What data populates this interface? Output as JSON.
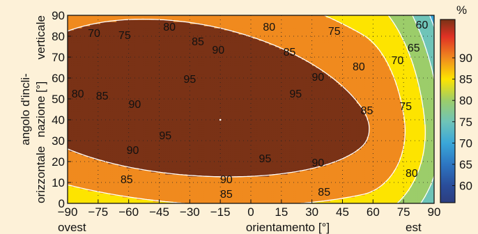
{
  "chart_data": {
    "type": "heatmap",
    "title": "",
    "xlabel": "orientamento [°]",
    "x_end_labels": {
      "left": "ovest",
      "right": "est"
    },
    "ylabel_lines": [
      "angolo d'incli-",
      "nazione [°]"
    ],
    "y_end_labels": {
      "bottom": "orizzontale",
      "top": "verticale"
    },
    "x_ticks": [
      -90,
      -75,
      -60,
      -45,
      -30,
      -15,
      0,
      15,
      30,
      45,
      60,
      75,
      90
    ],
    "y_ticks": [
      0,
      10,
      20,
      30,
      40,
      50,
      60,
      70,
      80,
      90
    ],
    "xlim": [
      -90,
      90
    ],
    "ylim": [
      0,
      90
    ],
    "grid": true,
    "colorbar": {
      "unit": "%",
      "ticks": [
        60,
        65,
        70,
        75,
        80,
        85,
        90
      ],
      "range": [
        56,
        99
      ],
      "stops": [
        {
          "v": 56,
          "color": "#2c3e7f"
        },
        {
          "v": 60,
          "color": "#2a4d9a"
        },
        {
          "v": 65,
          "color": "#2d76c2"
        },
        {
          "v": 70,
          "color": "#3aa7d8"
        },
        {
          "v": 75,
          "color": "#6fc4b8"
        },
        {
          "v": 80,
          "color": "#9ccd6a"
        },
        {
          "v": 85,
          "color": "#fde400"
        },
        {
          "v": 90,
          "color": "#f08a1e"
        },
        {
          "v": 95,
          "color": "#e03124"
        },
        {
          "v": 99,
          "color": "#7a3216"
        }
      ]
    },
    "max_point": {
      "x": -15,
      "y": 40,
      "value": 99
    },
    "contour_levels": [
      60,
      65,
      70,
      75,
      80,
      85,
      90,
      95
    ],
    "contour_labels": [
      {
        "text": "70",
        "x": -77,
        "y": 81
      },
      {
        "text": "75",
        "x": -62,
        "y": 80
      },
      {
        "text": "80",
        "x": -40,
        "y": 84
      },
      {
        "text": "85",
        "x": -26,
        "y": 77
      },
      {
        "text": "80",
        "x": 9,
        "y": 84
      },
      {
        "text": "75",
        "x": 41,
        "y": 82
      },
      {
        "text": "65",
        "x": 80,
        "y": 74
      },
      {
        "text": "60",
        "x": 84,
        "y": 85
      },
      {
        "text": "70",
        "x": 72,
        "y": 68
      },
      {
        "text": "90",
        "x": -16,
        "y": 73
      },
      {
        "text": "85",
        "x": 19,
        "y": 72
      },
      {
        "text": "80",
        "x": 53,
        "y": 65
      },
      {
        "text": "90",
        "x": 33,
        "y": 60
      },
      {
        "text": "95",
        "x": -30,
        "y": 59
      },
      {
        "text": "95",
        "x": 22,
        "y": 52
      },
      {
        "text": "85",
        "x": 57,
        "y": 44
      },
      {
        "text": "75",
        "x": 76,
        "y": 46
      },
      {
        "text": "80",
        "x": -85,
        "y": 52
      },
      {
        "text": "85",
        "x": -73,
        "y": 51
      },
      {
        "text": "90",
        "x": -57,
        "y": 47
      },
      {
        "text": "95",
        "x": -42,
        "y": 32
      },
      {
        "text": "90",
        "x": -58,
        "y": 25
      },
      {
        "text": "95",
        "x": 7,
        "y": 21
      },
      {
        "text": "90",
        "x": 33,
        "y": 19
      },
      {
        "text": "80",
        "x": 79,
        "y": 14
      },
      {
        "text": "85",
        "x": -61,
        "y": 11
      },
      {
        "text": "90",
        "x": -12,
        "y": 11
      },
      {
        "text": "85",
        "x": -12,
        "y": 4
      },
      {
        "text": "85",
        "x": 36,
        "y": 5
      }
    ]
  }
}
